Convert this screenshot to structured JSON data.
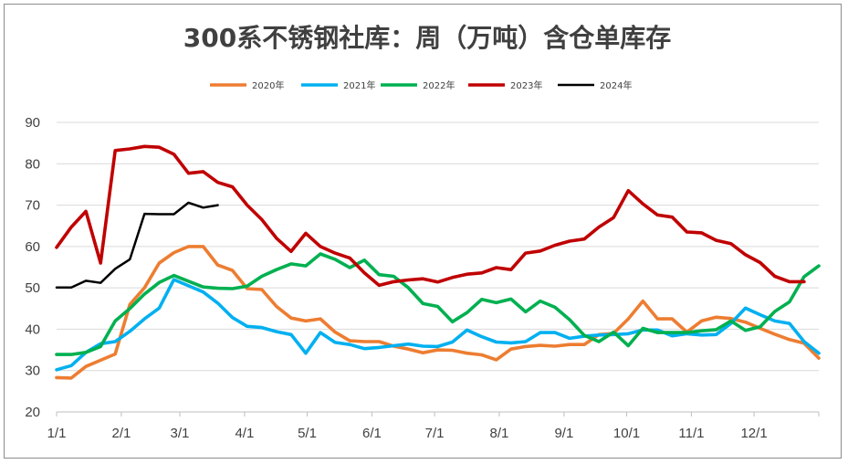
{
  "chart_data": {
    "type": "line",
    "title": "300系不锈钢社库：周（万吨）含仓单库存",
    "xlabel": "",
    "ylabel": "",
    "ylim": [
      20,
      90
    ],
    "yticks": [
      20,
      30,
      40,
      50,
      60,
      70,
      80,
      90
    ],
    "xlim": [
      "1/1",
      "12/31"
    ],
    "xtick_labels": [
      "1/1",
      "2/1",
      "3/1",
      "4/1",
      "5/1",
      "6/1",
      "7/1",
      "8/1",
      "9/1",
      "10/1",
      "11/1",
      "12/1"
    ],
    "legend_position": "top",
    "grid": "horizontal",
    "series": [
      {
        "name": "2020年",
        "color": "#ED7D31",
        "points": [
          [
            1,
            28.3
          ],
          [
            2,
            28.2
          ],
          [
            3,
            31
          ],
          [
            4,
            32.5
          ],
          [
            5,
            34
          ],
          [
            6,
            46
          ],
          [
            7,
            50
          ],
          [
            8,
            56
          ],
          [
            9,
            58.5
          ],
          [
            10,
            60
          ],
          [
            11,
            60
          ],
          [
            12,
            55.5
          ],
          [
            13,
            54.2
          ],
          [
            14,
            49.8
          ],
          [
            15,
            49.6
          ],
          [
            16,
            45.5
          ],
          [
            17,
            42.7
          ],
          [
            18,
            42
          ],
          [
            19,
            42.5
          ],
          [
            20,
            39.3
          ],
          [
            21,
            37.2
          ],
          [
            22,
            37
          ],
          [
            23,
            37
          ],
          [
            24,
            35.9
          ],
          [
            25,
            35.2
          ],
          [
            26,
            34.3
          ],
          [
            27,
            35
          ],
          [
            28,
            34.9
          ],
          [
            29,
            34.2
          ],
          [
            30,
            33.8
          ],
          [
            31,
            32.6
          ],
          [
            32,
            35.2
          ],
          [
            33,
            35.8
          ],
          [
            34,
            36.1
          ],
          [
            35,
            35.9
          ],
          [
            36,
            36.3
          ],
          [
            37,
            36.3
          ],
          [
            38,
            38.7
          ],
          [
            39,
            39
          ],
          [
            40,
            42.5
          ],
          [
            41,
            46.8
          ],
          [
            42,
            42.5
          ],
          [
            43,
            42.5
          ],
          [
            44,
            39.3
          ],
          [
            45,
            42
          ],
          [
            46,
            42.9
          ],
          [
            47,
            42.6
          ],
          [
            48,
            41.7
          ],
          [
            49,
            40.2
          ],
          [
            50,
            38.8
          ],
          [
            51,
            37.5
          ],
          [
            52,
            36.6
          ],
          [
            53,
            33
          ]
        ]
      },
      {
        "name": "2021年",
        "color": "#00B0F0",
        "points": [
          [
            1,
            30.2
          ],
          [
            2,
            31.2
          ],
          [
            3,
            34.4
          ],
          [
            4,
            36.5
          ],
          [
            5,
            37
          ],
          [
            6,
            39.5
          ],
          [
            7,
            42.5
          ],
          [
            8,
            45.1
          ],
          [
            9,
            52
          ],
          [
            10,
            50.5
          ],
          [
            11,
            49
          ],
          [
            12,
            46.3
          ],
          [
            13,
            42.8
          ],
          [
            14,
            40.7
          ],
          [
            15,
            40.4
          ],
          [
            16,
            39.4
          ],
          [
            17,
            38.7
          ],
          [
            18,
            34.2
          ],
          [
            19,
            39.2
          ],
          [
            20,
            36.8
          ],
          [
            21,
            36.3
          ],
          [
            22,
            35.3
          ],
          [
            23,
            35.6
          ],
          [
            24,
            36
          ],
          [
            25,
            36.4
          ],
          [
            26,
            35.9
          ],
          [
            27,
            35.8
          ],
          [
            28,
            36.9
          ],
          [
            29,
            39.8
          ],
          [
            30,
            38.2
          ],
          [
            31,
            36.9
          ],
          [
            32,
            36.7
          ],
          [
            33,
            37
          ],
          [
            34,
            39.2
          ],
          [
            35,
            39.2
          ],
          [
            36,
            37.8
          ],
          [
            37,
            38.3
          ],
          [
            38,
            38.6
          ],
          [
            39,
            38.7
          ],
          [
            40,
            38.9
          ],
          [
            41,
            39.8
          ],
          [
            42,
            39.8
          ],
          [
            43,
            38.4
          ],
          [
            44,
            38.9
          ],
          [
            45,
            38.6
          ],
          [
            46,
            38.7
          ],
          [
            47,
            41.4
          ],
          [
            48,
            45.1
          ],
          [
            49,
            43.5
          ],
          [
            50,
            42
          ],
          [
            51,
            41.4
          ],
          [
            52,
            37
          ],
          [
            53,
            34.2
          ]
        ]
      },
      {
        "name": "2022年",
        "color": "#00B050",
        "points": [
          [
            1,
            33.9
          ],
          [
            2,
            33.9
          ],
          [
            3,
            34.4
          ],
          [
            4,
            35.8
          ],
          [
            5,
            42
          ],
          [
            6,
            45
          ],
          [
            7,
            48.5
          ],
          [
            8,
            51.3
          ],
          [
            9,
            53
          ],
          [
            10,
            51.6
          ],
          [
            11,
            50.2
          ],
          [
            12,
            49.9
          ],
          [
            13,
            49.8
          ],
          [
            14,
            50.4
          ],
          [
            15,
            52.8
          ],
          [
            16,
            54.4
          ],
          [
            17,
            55.8
          ],
          [
            18,
            55.3
          ],
          [
            19,
            58.2
          ],
          [
            20,
            56.9
          ],
          [
            21,
            54.9
          ],
          [
            22,
            56.7
          ],
          [
            23,
            53.2
          ],
          [
            24,
            52.8
          ],
          [
            25,
            50
          ],
          [
            26,
            46.2
          ],
          [
            27,
            45.5
          ],
          [
            28,
            41.8
          ],
          [
            29,
            44
          ],
          [
            30,
            47.2
          ],
          [
            31,
            46.4
          ],
          [
            32,
            47.3
          ],
          [
            33,
            44.2
          ],
          [
            34,
            46.8
          ],
          [
            35,
            45.3
          ],
          [
            36,
            42.3
          ],
          [
            37,
            38.5
          ],
          [
            38,
            37
          ],
          [
            39,
            39.3
          ],
          [
            40,
            36
          ],
          [
            41,
            40.2
          ],
          [
            42,
            39.2
          ],
          [
            43,
            39.2
          ],
          [
            44,
            39.2
          ],
          [
            45,
            39.6
          ],
          [
            46,
            39.9
          ],
          [
            47,
            42
          ],
          [
            48,
            39.7
          ],
          [
            49,
            40.6
          ],
          [
            50,
            44.3
          ],
          [
            51,
            46.6
          ],
          [
            52,
            52.7
          ],
          [
            53,
            55.3
          ]
        ]
      },
      {
        "name": "2023年",
        "color": "#C00000",
        "points": [
          [
            1,
            59.8
          ],
          [
            2,
            64.7
          ],
          [
            3,
            68.5
          ],
          [
            4,
            56
          ],
          [
            5,
            83.2
          ],
          [
            6,
            83.6
          ],
          [
            7,
            84.2
          ],
          [
            8,
            84
          ],
          [
            9,
            82.3
          ],
          [
            10,
            77.7
          ],
          [
            11,
            78.1
          ],
          [
            12,
            75.5
          ],
          [
            13,
            74.4
          ],
          [
            14,
            70
          ],
          [
            15,
            66.5
          ],
          [
            16,
            62
          ],
          [
            17,
            58.8
          ],
          [
            18,
            63.2
          ],
          [
            19,
            60
          ],
          [
            20,
            58.4
          ],
          [
            21,
            57.2
          ],
          [
            22,
            53.6
          ],
          [
            23,
            50.6
          ],
          [
            24,
            51.5
          ],
          [
            25,
            51.9
          ],
          [
            26,
            52.2
          ],
          [
            27,
            51.4
          ],
          [
            28,
            52.5
          ],
          [
            29,
            53.3
          ],
          [
            30,
            53.6
          ],
          [
            31,
            54.9
          ],
          [
            32,
            54.4
          ],
          [
            33,
            58.4
          ],
          [
            34,
            58.9
          ],
          [
            35,
            60.3
          ],
          [
            36,
            61.3
          ],
          [
            37,
            61.8
          ],
          [
            38,
            64.7
          ],
          [
            39,
            67
          ],
          [
            40,
            73.5
          ],
          [
            41,
            70.3
          ],
          [
            42,
            67.6
          ],
          [
            43,
            67.1
          ],
          [
            44,
            63.5
          ],
          [
            45,
            63.3
          ],
          [
            46,
            61.5
          ],
          [
            47,
            60.7
          ],
          [
            48,
            58
          ],
          [
            49,
            56.1
          ],
          [
            50,
            52.8
          ],
          [
            51,
            51.5
          ],
          [
            52,
            51.5
          ]
        ]
      },
      {
        "name": "2024年",
        "color": "#000000",
        "points": [
          [
            1,
            50.1
          ],
          [
            2,
            50.1
          ],
          [
            3,
            51.7
          ],
          [
            4,
            51.2
          ],
          [
            5,
            54.6
          ],
          [
            6,
            56.9
          ],
          [
            7,
            67.9
          ],
          [
            8,
            67.8
          ],
          [
            9,
            67.8
          ],
          [
            10,
            70.6
          ],
          [
            11,
            69.4
          ],
          [
            12,
            70
          ]
        ]
      }
    ]
  }
}
